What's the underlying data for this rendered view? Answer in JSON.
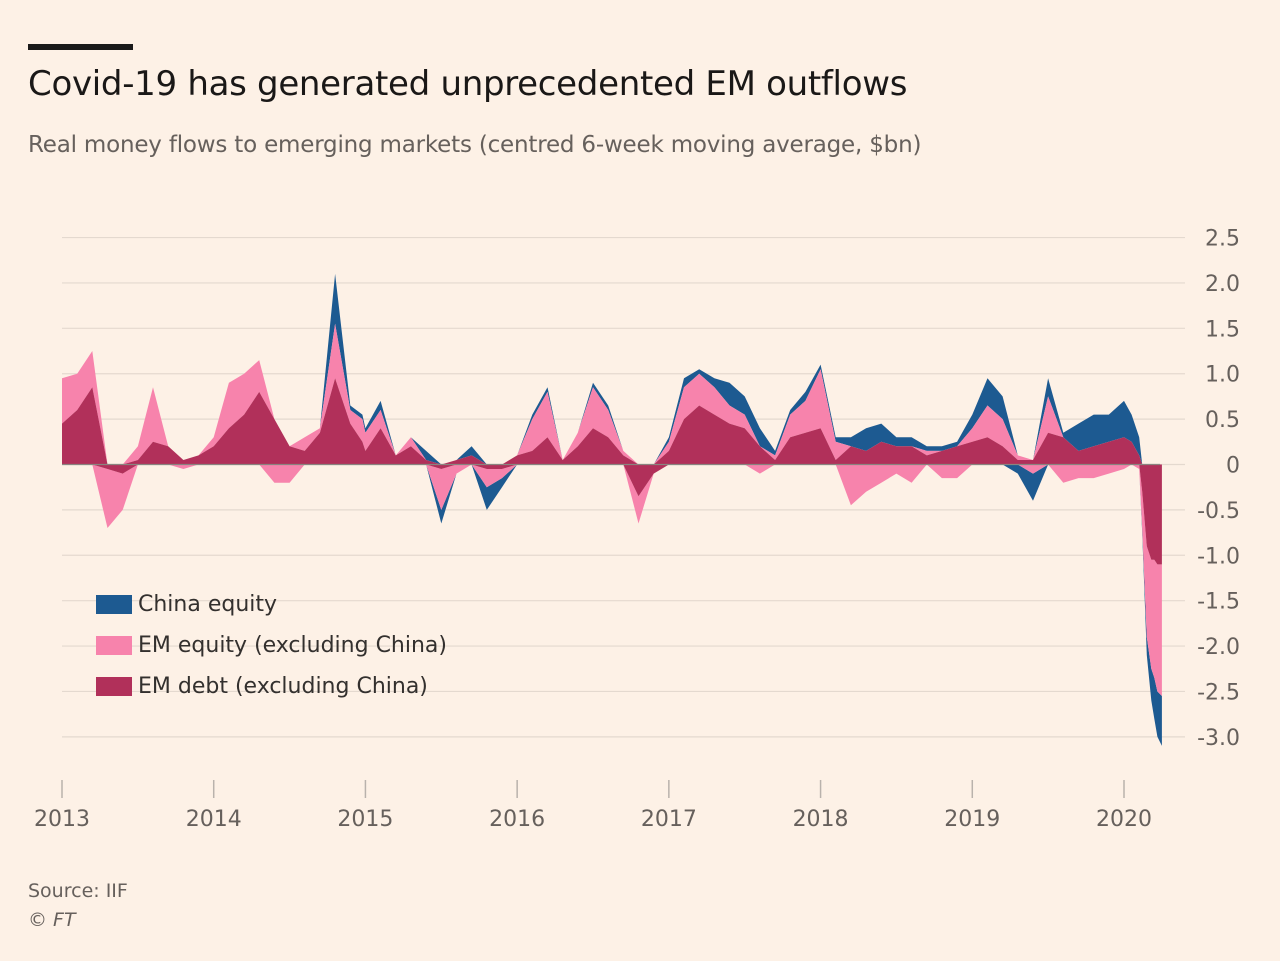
{
  "title": "Covid-19 has generated unprecedented EM outflows",
  "subtitle": "Real money flows to emerging markets (centred 6-week moving average, $bn)",
  "source": "Source: IIF",
  "copyright": "© FT",
  "colors": {
    "background": "#fdf1e6",
    "china_equity": "#1d5a91",
    "em_equity": "#f783ac",
    "em_debt": "#b1305a",
    "grid": "#e4d9cf"
  },
  "chart_data": {
    "type": "area",
    "stacked": true,
    "x_axis": {
      "ticks": [
        "2013",
        "2014",
        "2015",
        "2016",
        "2017",
        "2018",
        "2019",
        "2020"
      ],
      "range": [
        2013.0,
        2020.25
      ]
    },
    "y_axis": {
      "position": "right",
      "ylim": [
        -3.2,
        2.55
      ],
      "ticks": [
        2.5,
        2.0,
        1.5,
        1.0,
        0.5,
        0,
        -0.5,
        -1.0,
        -1.5,
        -2.0,
        -2.5,
        -3.0
      ],
      "tick_labels": [
        "2.5",
        "2.0",
        "1.5",
        "1.0",
        "0.5",
        "0",
        "-0.5",
        "-1.0",
        "-1.5",
        "-2.0",
        "-2.5",
        "-3.0"
      ]
    },
    "grid": true,
    "legend_position": "bottom-left",
    "x": [
      2013.0,
      2013.1,
      2013.2,
      2013.3,
      2013.4,
      2013.5,
      2013.6,
      2013.7,
      2013.8,
      2013.9,
      2014.0,
      2014.1,
      2014.2,
      2014.3,
      2014.4,
      2014.5,
      2014.6,
      2014.7,
      2014.8,
      2014.9,
      2014.98,
      2015.0,
      2015.1,
      2015.2,
      2015.3,
      2015.4,
      2015.5,
      2015.6,
      2015.7,
      2015.8,
      2015.9,
      2016.0,
      2016.1,
      2016.2,
      2016.3,
      2016.4,
      2016.5,
      2016.6,
      2016.7,
      2016.8,
      2016.9,
      2017.0,
      2017.1,
      2017.2,
      2017.3,
      2017.4,
      2017.5,
      2017.6,
      2017.7,
      2017.8,
      2017.9,
      2018.0,
      2018.1,
      2018.2,
      2018.3,
      2018.4,
      2018.5,
      2018.6,
      2018.7,
      2018.8,
      2018.9,
      2019.0,
      2019.1,
      2019.2,
      2019.3,
      2019.4,
      2019.5,
      2019.6,
      2019.7,
      2019.8,
      2019.9,
      2020.0,
      2020.05,
      2020.1,
      2020.12,
      2020.15,
      2020.18,
      2020.2,
      2020.22,
      2020.25
    ],
    "series": [
      {
        "name": "EM debt (excluding China)",
        "values": [
          0.45,
          0.6,
          0.85,
          -0.05,
          -0.1,
          0.05,
          0.25,
          0.2,
          0.05,
          0.1,
          0.2,
          0.4,
          0.55,
          0.8,
          0.5,
          0.2,
          0.15,
          0.35,
          0.95,
          0.45,
          0.25,
          0.15,
          0.4,
          0.1,
          0.2,
          0.05,
          -0.05,
          0.05,
          0.1,
          -0.05,
          -0.05,
          0.1,
          0.15,
          0.3,
          0.05,
          0.2,
          0.4,
          0.3,
          0.1,
          -0.35,
          -0.1,
          0.15,
          0.5,
          0.65,
          0.55,
          0.45,
          0.4,
          0.2,
          0.05,
          0.3,
          0.35,
          0.4,
          0.05,
          0.2,
          0.15,
          0.25,
          0.2,
          0.2,
          0.1,
          0.15,
          0.2,
          0.25,
          0.3,
          0.2,
          0.05,
          0.05,
          0.35,
          0.3,
          0.15,
          0.2,
          0.25,
          0.3,
          0.25,
          0.1,
          -0.3,
          -0.9,
          -1.05,
          -1.05,
          -1.1,
          -1.1
        ]
      },
      {
        "name": "EM equity (excluding China)",
        "values": [
          0.5,
          0.4,
          0.4,
          -0.65,
          -0.4,
          0.15,
          0.6,
          0.0,
          -0.05,
          0.0,
          0.1,
          0.5,
          0.45,
          0.35,
          -0.2,
          -0.2,
          0.15,
          0.05,
          0.6,
          0.15,
          0.25,
          0.2,
          0.2,
          0.0,
          0.1,
          0.0,
          -0.45,
          -0.1,
          0.0,
          -0.2,
          -0.1,
          0.0,
          0.35,
          0.5,
          0.0,
          0.15,
          0.45,
          0.3,
          0.05,
          -0.3,
          0.0,
          0.1,
          0.35,
          0.35,
          0.3,
          0.2,
          0.15,
          -0.1,
          0.05,
          0.25,
          0.35,
          0.65,
          0.2,
          -0.45,
          -0.3,
          -0.2,
          -0.1,
          -0.2,
          0.05,
          -0.15,
          -0.15,
          0.15,
          0.35,
          0.3,
          0.05,
          -0.1,
          0.4,
          -0.2,
          -0.15,
          -0.15,
          -0.1,
          -0.05,
          0.0,
          -0.05,
          -0.4,
          -1.0,
          -1.2,
          -1.3,
          -1.4,
          -1.45
        ]
      },
      {
        "name": "China equity",
        "values": [
          0.0,
          0.0,
          0.0,
          0.0,
          0.0,
          0.0,
          0.0,
          0.0,
          0.0,
          0.0,
          0.0,
          0.0,
          0.0,
          0.0,
          0.0,
          0.0,
          0.0,
          0.0,
          0.55,
          0.05,
          0.05,
          0.05,
          0.1,
          0.0,
          0.0,
          0.1,
          -0.15,
          0.0,
          0.1,
          -0.25,
          -0.1,
          0.0,
          0.05,
          0.05,
          0.0,
          0.0,
          0.05,
          0.05,
          0.0,
          0.0,
          0.0,
          0.05,
          0.1,
          0.05,
          0.1,
          0.25,
          0.2,
          0.2,
          0.05,
          0.05,
          0.1,
          0.05,
          0.05,
          0.1,
          0.25,
          0.2,
          0.1,
          0.1,
          0.05,
          0.05,
          0.05,
          0.15,
          0.3,
          0.25,
          -0.1,
          -0.3,
          0.2,
          0.05,
          0.3,
          0.35,
          0.3,
          0.4,
          0.3,
          0.2,
          -0.05,
          -0.2,
          -0.35,
          -0.45,
          -0.5,
          -0.55
        ]
      }
    ],
    "legend": [
      "China equity",
      "EM equity (excluding China)",
      "EM debt (excluding China)"
    ]
  }
}
